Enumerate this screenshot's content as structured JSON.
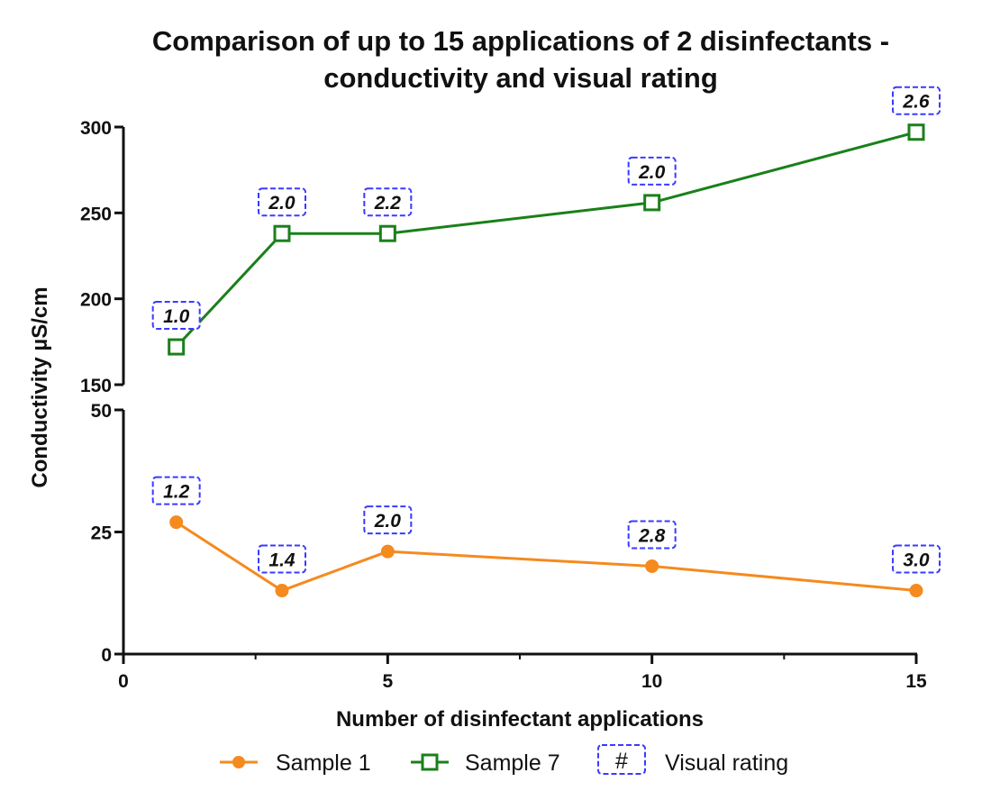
{
  "chart_data": {
    "type": "line",
    "title_lines": [
      "Comparison of up to 15 applications of 2 disinfectants -",
      "conductivity and visual rating"
    ],
    "xlabel": "Number of disinfectant applications",
    "ylabel": "Conductivity µS/cm",
    "xlim": [
      0,
      15
    ],
    "x_ticks": [
      {
        "value": 0,
        "label": "0"
      },
      {
        "value": 5,
        "label": "5"
      },
      {
        "value": 10,
        "label": "10"
      },
      {
        "value": 15,
        "label": "15"
      }
    ],
    "y_axis_broken": true,
    "y_segments": [
      {
        "name": "upper",
        "range": [
          150,
          300
        ],
        "ticks": [
          {
            "value": 150,
            "label": "150"
          },
          {
            "value": 200,
            "label": "200"
          },
          {
            "value": 250,
            "label": "250"
          },
          {
            "value": 300,
            "label": "300"
          }
        ]
      },
      {
        "name": "lower",
        "range": [
          0,
          50
        ],
        "ticks": [
          {
            "value": 0,
            "label": "0"
          },
          {
            "value": 25,
            "label": "25"
          },
          {
            "value": 50,
            "label": "50"
          }
        ]
      }
    ],
    "series": [
      {
        "name": "Sample 1",
        "segment": "lower",
        "color": "#f58a1f",
        "marker": "filled-circle",
        "x": [
          1,
          3,
          5,
          10,
          15
        ],
        "y": [
          27,
          13,
          21,
          18,
          13
        ],
        "visual_rating": [
          "1.2",
          "1.4",
          "2.0",
          "2.8",
          "3.0"
        ]
      },
      {
        "name": "Sample 7",
        "segment": "upper",
        "color": "#1a801a",
        "marker": "open-square",
        "x": [
          1,
          3,
          5,
          10,
          15
        ],
        "y": [
          172,
          238,
          238,
          256,
          297
        ],
        "visual_rating": [
          "1.0",
          "2.0",
          "2.2",
          "2.0",
          "2.6"
        ]
      }
    ],
    "legend": {
      "placement": "bottom",
      "entries": [
        {
          "label": "Sample 1"
        },
        {
          "label": "Sample 7"
        },
        {
          "symbol": "#",
          "label": "Visual rating"
        }
      ]
    },
    "rating_box_color": "#3a3aff"
  }
}
